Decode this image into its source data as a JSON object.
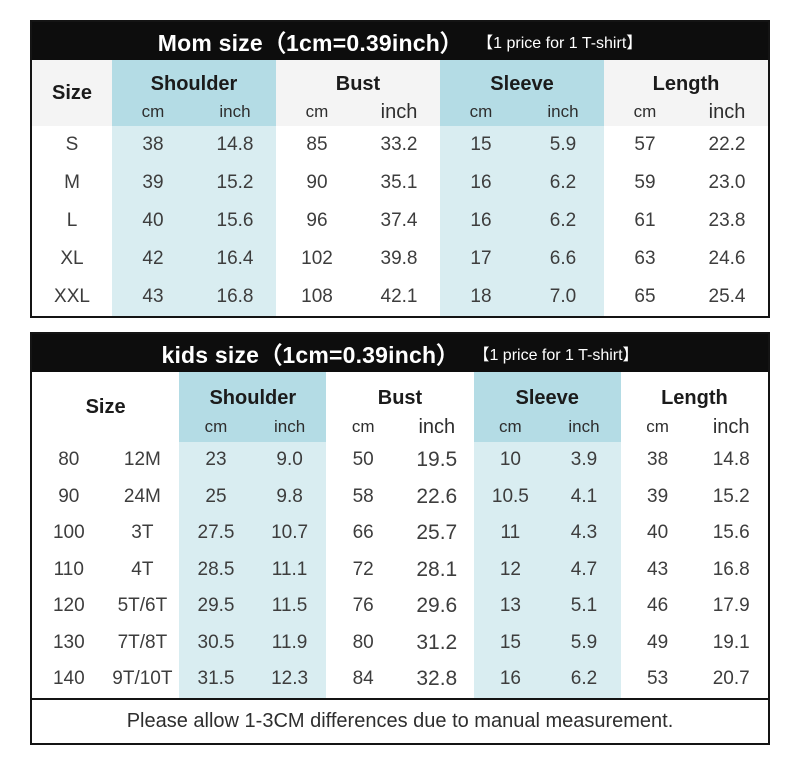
{
  "colors": {
    "bar_black": "#0d0d0d",
    "header_blue": "#b4dce5",
    "cell_blue": "#d9edf1",
    "header_gray": "#f4f4f4"
  },
  "mom_table": {
    "title": "Mom size（1cm=0.39inch）",
    "title_note": "【1 price for 1 T-shirt】",
    "size_header": "Size",
    "groups": {
      "shoulder": "Shoulder",
      "bust": "Bust",
      "sleeve": "Sleeve",
      "length": "Length"
    },
    "unit_cm": "cm",
    "unit_inch": "inch",
    "rows": [
      [
        "S",
        "38",
        "14.8",
        "85",
        "33.2",
        "15",
        "5.9",
        "57",
        "22.2"
      ],
      [
        "M",
        "39",
        "15.2",
        "90",
        "35.1",
        "16",
        "6.2",
        "59",
        "23.0"
      ],
      [
        "L",
        "40",
        "15.6",
        "96",
        "37.4",
        "16",
        "6.2",
        "61",
        "23.8"
      ],
      [
        "XL",
        "42",
        "16.4",
        "102",
        "39.8",
        "17",
        "6.6",
        "63",
        "24.6"
      ],
      [
        "XXL",
        "43",
        "16.8",
        "108",
        "42.1",
        "18",
        "7.0",
        "65",
        "25.4"
      ]
    ]
  },
  "kids_table": {
    "title": "kids size（1cm=0.39inch）",
    "title_note": "【1 price for 1 T-shirt】",
    "size_header": "Size",
    "groups": {
      "shoulder": "Shoulder",
      "bust": "Bust",
      "sleeve": "Sleeve",
      "length": "Length"
    },
    "unit_cm": "cm",
    "unit_inch": "inch",
    "rows": [
      [
        "80",
        "12M",
        "23",
        "9.0",
        "50",
        "19.5",
        "10",
        "3.9",
        "38",
        "14.8"
      ],
      [
        "90",
        "24M",
        "25",
        "9.8",
        "58",
        "22.6",
        "10.5",
        "4.1",
        "39",
        "15.2"
      ],
      [
        "100",
        "3T",
        "27.5",
        "10.7",
        "66",
        "25.7",
        "11",
        "4.3",
        "40",
        "15.6"
      ],
      [
        "110",
        "4T",
        "28.5",
        "11.1",
        "72",
        "28.1",
        "12",
        "4.7",
        "43",
        "16.8"
      ],
      [
        "120",
        "5T/6T",
        "29.5",
        "11.5",
        "76",
        "29.6",
        "13",
        "5.1",
        "46",
        "17.9"
      ],
      [
        "130",
        "7T/8T",
        "30.5",
        "11.9",
        "80",
        "31.2",
        "15",
        "5.9",
        "49",
        "19.1"
      ],
      [
        "140",
        "9T/10T",
        "31.5",
        "12.3",
        "84",
        "32.8",
        "16",
        "6.2",
        "53",
        "20.7"
      ]
    ],
    "footer_note": "Please allow 1-3CM differences due to manual measurement."
  }
}
